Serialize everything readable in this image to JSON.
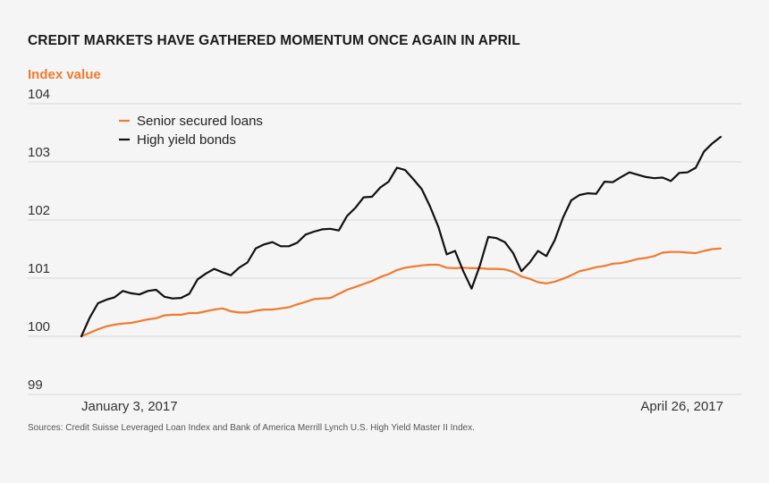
{
  "chart_data": {
    "type": "line",
    "title": "CREDIT MARKETS HAVE GATHERED MOMENTUM ONCE AGAIN IN APRIL",
    "ylabel": "Index value",
    "ylim": [
      99,
      104
    ],
    "yticks": [
      99,
      100,
      101,
      102,
      103,
      104
    ],
    "ytick_labels": [
      "99",
      "100",
      "101",
      "102",
      "103",
      "104"
    ],
    "xlim": [
      0,
      76
    ],
    "x_tick_labels": [
      {
        "at": 0,
        "label": "January 3, 2017"
      },
      {
        "at": 76,
        "label": "April 26, 2017"
      }
    ],
    "grid": true,
    "legend_position": "top-left",
    "colors": {
      "senior": "#f07b2e",
      "hy": "#111111"
    },
    "series": [
      {
        "name": "Senior secured loans",
        "color": "#f07b2e",
        "values": [
          100.0,
          100.06,
          100.12,
          100.17,
          100.2,
          100.22,
          100.23,
          100.26,
          100.29,
          100.31,
          100.36,
          100.37,
          100.37,
          100.4,
          100.4,
          100.43,
          100.46,
          100.48,
          100.43,
          100.41,
          100.41,
          100.44,
          100.46,
          100.46,
          100.48,
          100.5,
          100.55,
          100.59,
          100.64,
          100.65,
          100.66,
          100.73,
          100.8,
          100.85,
          100.9,
          100.95,
          101.02,
          101.07,
          101.14,
          101.18,
          101.2,
          101.22,
          101.23,
          101.23,
          101.18,
          101.17,
          101.18,
          101.17,
          101.17,
          101.16,
          101.16,
          101.15,
          101.11,
          101.03,
          100.99,
          100.93,
          100.91,
          100.94,
          100.99,
          101.05,
          101.12,
          101.15,
          101.19,
          101.21,
          101.25,
          101.26,
          101.29,
          101.33,
          101.35,
          101.38,
          101.44,
          101.45,
          101.45,
          101.44,
          101.43,
          101.47,
          101.5,
          101.51
        ]
      },
      {
        "name": "High yield bonds",
        "color": "#111111",
        "values": [
          100.0,
          100.32,
          100.57,
          100.63,
          100.67,
          100.78,
          100.74,
          100.72,
          100.78,
          100.8,
          100.68,
          100.65,
          100.66,
          100.73,
          100.98,
          101.08,
          101.16,
          101.1,
          101.05,
          101.18,
          101.27,
          101.51,
          101.58,
          101.62,
          101.55,
          101.55,
          101.61,
          101.75,
          101.8,
          101.84,
          101.85,
          101.82,
          102.07,
          102.21,
          102.39,
          102.4,
          102.56,
          102.66,
          102.9,
          102.86,
          102.7,
          102.53,
          102.23,
          101.88,
          101.41,
          101.47,
          101.12,
          100.82,
          101.22,
          101.71,
          101.69,
          101.62,
          101.43,
          101.12,
          101.27,
          101.47,
          101.38,
          101.65,
          102.04,
          102.34,
          102.43,
          102.46,
          102.45,
          102.66,
          102.65,
          102.74,
          102.82,
          102.78,
          102.74,
          102.72,
          102.73,
          102.67,
          102.81,
          102.82,
          102.9,
          103.18,
          103.32,
          103.43
        ]
      }
    ]
  },
  "footer": {
    "source": "Sources: Credit Suisse Leveraged Loan Index and Bank of America Merrill Lynch U.S. High Yield Master II Index."
  }
}
